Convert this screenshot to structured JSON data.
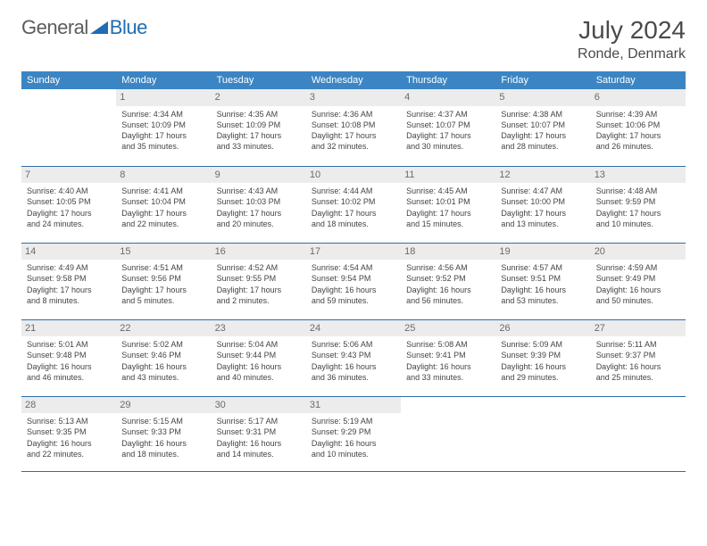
{
  "brand": {
    "word1": "General",
    "word2": "Blue",
    "color_gray": "#5c5c5c",
    "color_blue": "#1f6db2"
  },
  "title": "July 2024",
  "location": "Ronde, Denmark",
  "colors": {
    "header_bg": "#3b85c4",
    "header_text": "#ffffff",
    "daynum_bg": "#ececec",
    "daynum_text": "#6b6b6b",
    "cell_border": "#2f6ea8",
    "body_text": "#444444"
  },
  "typography": {
    "title_fontsize": 28,
    "location_fontsize": 16,
    "dayheader_fontsize": 11,
    "daynum_fontsize": 11,
    "cell_fontsize": 9
  },
  "day_headers": [
    "Sunday",
    "Monday",
    "Tuesday",
    "Wednesday",
    "Thursday",
    "Friday",
    "Saturday"
  ],
  "weeks": [
    [
      {
        "n": "",
        "sr": "",
        "ss": "",
        "dl1": "",
        "dl2": ""
      },
      {
        "n": "1",
        "sr": "Sunrise: 4:34 AM",
        "ss": "Sunset: 10:09 PM",
        "dl1": "Daylight: 17 hours",
        "dl2": "and 35 minutes."
      },
      {
        "n": "2",
        "sr": "Sunrise: 4:35 AM",
        "ss": "Sunset: 10:09 PM",
        "dl1": "Daylight: 17 hours",
        "dl2": "and 33 minutes."
      },
      {
        "n": "3",
        "sr": "Sunrise: 4:36 AM",
        "ss": "Sunset: 10:08 PM",
        "dl1": "Daylight: 17 hours",
        "dl2": "and 32 minutes."
      },
      {
        "n": "4",
        "sr": "Sunrise: 4:37 AM",
        "ss": "Sunset: 10:07 PM",
        "dl1": "Daylight: 17 hours",
        "dl2": "and 30 minutes."
      },
      {
        "n": "5",
        "sr": "Sunrise: 4:38 AM",
        "ss": "Sunset: 10:07 PM",
        "dl1": "Daylight: 17 hours",
        "dl2": "and 28 minutes."
      },
      {
        "n": "6",
        "sr": "Sunrise: 4:39 AM",
        "ss": "Sunset: 10:06 PM",
        "dl1": "Daylight: 17 hours",
        "dl2": "and 26 minutes."
      }
    ],
    [
      {
        "n": "7",
        "sr": "Sunrise: 4:40 AM",
        "ss": "Sunset: 10:05 PM",
        "dl1": "Daylight: 17 hours",
        "dl2": "and 24 minutes."
      },
      {
        "n": "8",
        "sr": "Sunrise: 4:41 AM",
        "ss": "Sunset: 10:04 PM",
        "dl1": "Daylight: 17 hours",
        "dl2": "and 22 minutes."
      },
      {
        "n": "9",
        "sr": "Sunrise: 4:43 AM",
        "ss": "Sunset: 10:03 PM",
        "dl1": "Daylight: 17 hours",
        "dl2": "and 20 minutes."
      },
      {
        "n": "10",
        "sr": "Sunrise: 4:44 AM",
        "ss": "Sunset: 10:02 PM",
        "dl1": "Daylight: 17 hours",
        "dl2": "and 18 minutes."
      },
      {
        "n": "11",
        "sr": "Sunrise: 4:45 AM",
        "ss": "Sunset: 10:01 PM",
        "dl1": "Daylight: 17 hours",
        "dl2": "and 15 minutes."
      },
      {
        "n": "12",
        "sr": "Sunrise: 4:47 AM",
        "ss": "Sunset: 10:00 PM",
        "dl1": "Daylight: 17 hours",
        "dl2": "and 13 minutes."
      },
      {
        "n": "13",
        "sr": "Sunrise: 4:48 AM",
        "ss": "Sunset: 9:59 PM",
        "dl1": "Daylight: 17 hours",
        "dl2": "and 10 minutes."
      }
    ],
    [
      {
        "n": "14",
        "sr": "Sunrise: 4:49 AM",
        "ss": "Sunset: 9:58 PM",
        "dl1": "Daylight: 17 hours",
        "dl2": "and 8 minutes."
      },
      {
        "n": "15",
        "sr": "Sunrise: 4:51 AM",
        "ss": "Sunset: 9:56 PM",
        "dl1": "Daylight: 17 hours",
        "dl2": "and 5 minutes."
      },
      {
        "n": "16",
        "sr": "Sunrise: 4:52 AM",
        "ss": "Sunset: 9:55 PM",
        "dl1": "Daylight: 17 hours",
        "dl2": "and 2 minutes."
      },
      {
        "n": "17",
        "sr": "Sunrise: 4:54 AM",
        "ss": "Sunset: 9:54 PM",
        "dl1": "Daylight: 16 hours",
        "dl2": "and 59 minutes."
      },
      {
        "n": "18",
        "sr": "Sunrise: 4:56 AM",
        "ss": "Sunset: 9:52 PM",
        "dl1": "Daylight: 16 hours",
        "dl2": "and 56 minutes."
      },
      {
        "n": "19",
        "sr": "Sunrise: 4:57 AM",
        "ss": "Sunset: 9:51 PM",
        "dl1": "Daylight: 16 hours",
        "dl2": "and 53 minutes."
      },
      {
        "n": "20",
        "sr": "Sunrise: 4:59 AM",
        "ss": "Sunset: 9:49 PM",
        "dl1": "Daylight: 16 hours",
        "dl2": "and 50 minutes."
      }
    ],
    [
      {
        "n": "21",
        "sr": "Sunrise: 5:01 AM",
        "ss": "Sunset: 9:48 PM",
        "dl1": "Daylight: 16 hours",
        "dl2": "and 46 minutes."
      },
      {
        "n": "22",
        "sr": "Sunrise: 5:02 AM",
        "ss": "Sunset: 9:46 PM",
        "dl1": "Daylight: 16 hours",
        "dl2": "and 43 minutes."
      },
      {
        "n": "23",
        "sr": "Sunrise: 5:04 AM",
        "ss": "Sunset: 9:44 PM",
        "dl1": "Daylight: 16 hours",
        "dl2": "and 40 minutes."
      },
      {
        "n": "24",
        "sr": "Sunrise: 5:06 AM",
        "ss": "Sunset: 9:43 PM",
        "dl1": "Daylight: 16 hours",
        "dl2": "and 36 minutes."
      },
      {
        "n": "25",
        "sr": "Sunrise: 5:08 AM",
        "ss": "Sunset: 9:41 PM",
        "dl1": "Daylight: 16 hours",
        "dl2": "and 33 minutes."
      },
      {
        "n": "26",
        "sr": "Sunrise: 5:09 AM",
        "ss": "Sunset: 9:39 PM",
        "dl1": "Daylight: 16 hours",
        "dl2": "and 29 minutes."
      },
      {
        "n": "27",
        "sr": "Sunrise: 5:11 AM",
        "ss": "Sunset: 9:37 PM",
        "dl1": "Daylight: 16 hours",
        "dl2": "and 25 minutes."
      }
    ],
    [
      {
        "n": "28",
        "sr": "Sunrise: 5:13 AM",
        "ss": "Sunset: 9:35 PM",
        "dl1": "Daylight: 16 hours",
        "dl2": "and 22 minutes."
      },
      {
        "n": "29",
        "sr": "Sunrise: 5:15 AM",
        "ss": "Sunset: 9:33 PM",
        "dl1": "Daylight: 16 hours",
        "dl2": "and 18 minutes."
      },
      {
        "n": "30",
        "sr": "Sunrise: 5:17 AM",
        "ss": "Sunset: 9:31 PM",
        "dl1": "Daylight: 16 hours",
        "dl2": "and 14 minutes."
      },
      {
        "n": "31",
        "sr": "Sunrise: 5:19 AM",
        "ss": "Sunset: 9:29 PM",
        "dl1": "Daylight: 16 hours",
        "dl2": "and 10 minutes."
      },
      {
        "n": "",
        "sr": "",
        "ss": "",
        "dl1": "",
        "dl2": ""
      },
      {
        "n": "",
        "sr": "",
        "ss": "",
        "dl1": "",
        "dl2": ""
      },
      {
        "n": "",
        "sr": "",
        "ss": "",
        "dl1": "",
        "dl2": ""
      }
    ]
  ]
}
